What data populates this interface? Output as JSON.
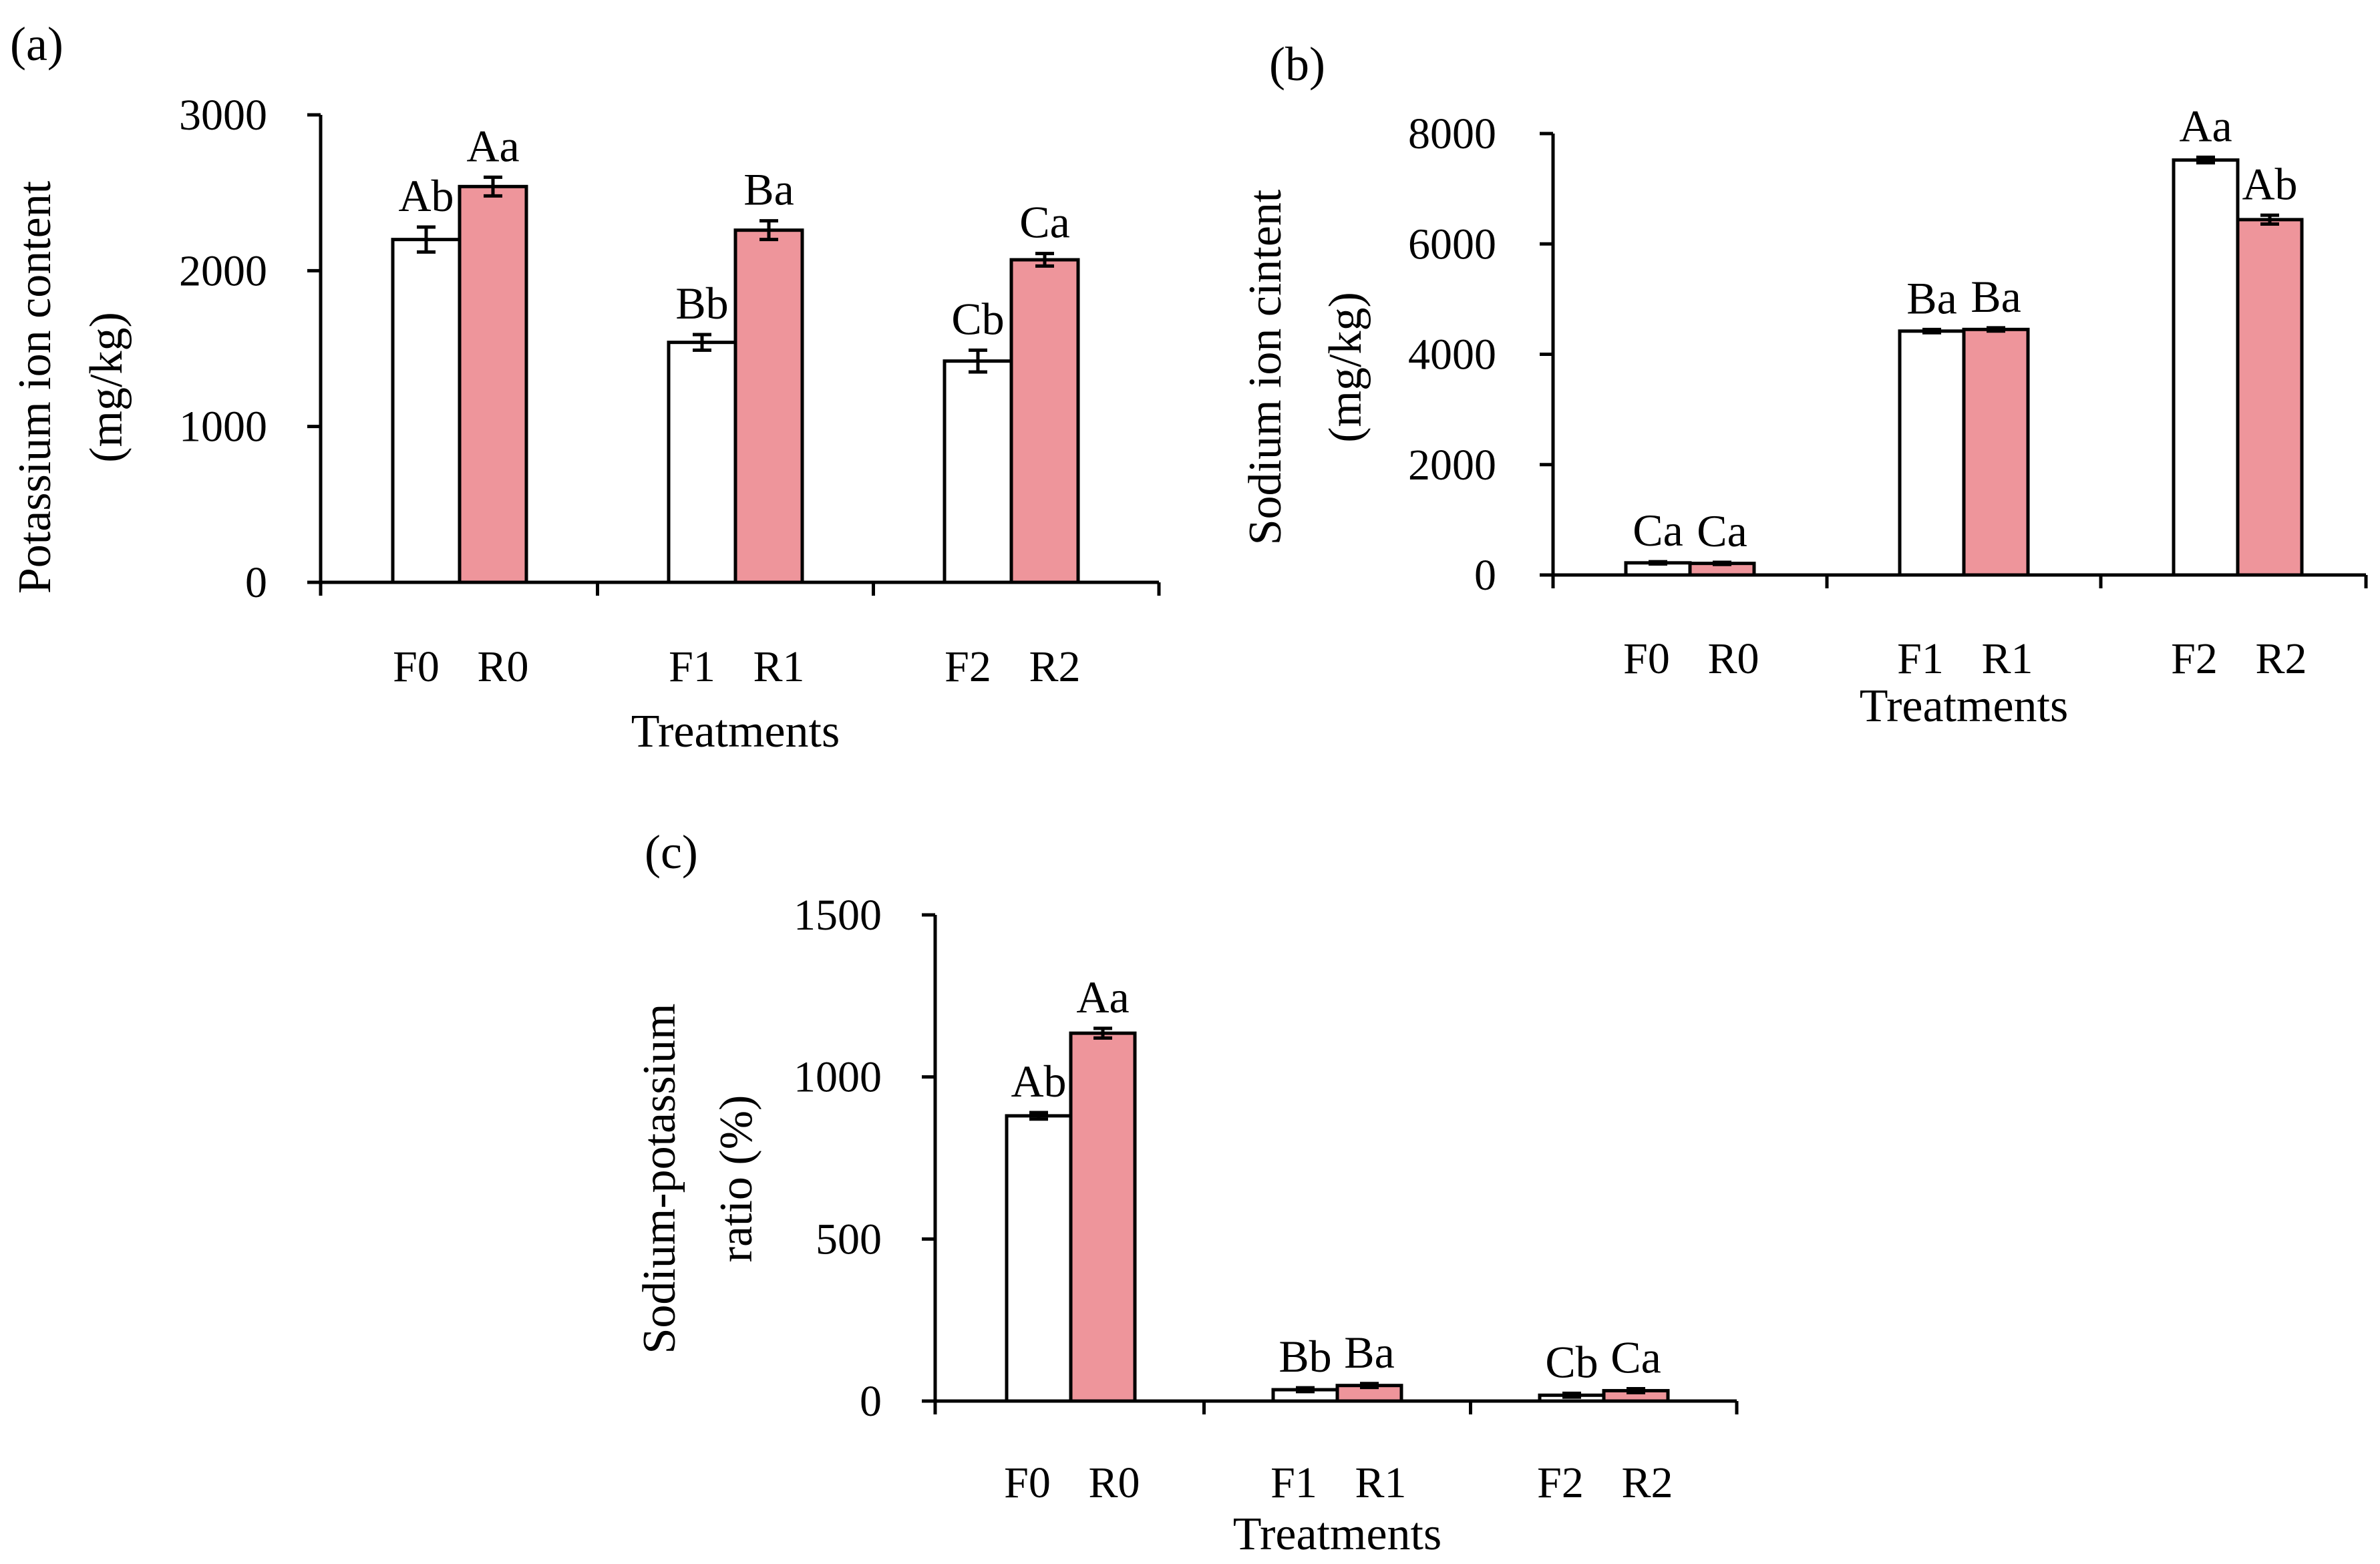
{
  "colors": {
    "F": "#ffffff",
    "R": "#ee959b"
  },
  "chart_data": [
    {
      "type": "bar",
      "panel_label": "(a)",
      "categories": [
        "F0",
        "R0",
        "F1",
        "R1",
        "F2",
        "R2"
      ],
      "groups": [
        [
          "F0",
          "R0"
        ],
        [
          "F1",
          "R1"
        ],
        [
          "F2",
          "R2"
        ]
      ],
      "values": [
        2200,
        2540,
        1540,
        2260,
        1420,
        2070
      ],
      "errors": [
        80,
        60,
        50,
        60,
        70,
        40
      ],
      "letters": [
        "Ab",
        "Aa",
        "Bb",
        "Ba",
        "Cb",
        "Ca"
      ],
      "xlabel": "Treatments",
      "ylabel_lines": [
        "Potassium ion content",
        "(mg/kg)"
      ],
      "ylim": [
        0,
        3000
      ],
      "yticks": [
        "0",
        "1000",
        "2000",
        "3000"
      ],
      "grid": false
    },
    {
      "type": "bar",
      "panel_label": "(b)",
      "categories": [
        "F0",
        "R0",
        "F1",
        "R1",
        "F2",
        "R2"
      ],
      "groups": [
        [
          "F0",
          "R0"
        ],
        [
          "F1",
          "R1"
        ],
        [
          "F2",
          "R2"
        ]
      ],
      "values": [
        220,
        210,
        4420,
        4450,
        7520,
        6440
      ],
      "errors": [
        20,
        20,
        30,
        30,
        50,
        80
      ],
      "letters": [
        "Ca",
        "Ca",
        "Ba",
        "Ba",
        "Aa",
        "Ab"
      ],
      "xlabel": "Treatments",
      "ylabel_lines": [
        "Sodium ion cintent",
        "(mg/kg)"
      ],
      "ylim": [
        0,
        8000
      ],
      "yticks": [
        "0",
        "2000",
        "4000",
        "6000",
        "8000"
      ],
      "grid": false
    },
    {
      "type": "bar",
      "panel_label": "(c)",
      "categories": [
        "F0",
        "R0",
        "F1",
        "R1",
        "F2",
        "R2"
      ],
      "groups": [
        [
          "F0",
          "R0"
        ],
        [
          "F1",
          "R1"
        ],
        [
          "F2",
          "R2"
        ]
      ],
      "values": [
        880,
        1135,
        35,
        48,
        18,
        32
      ],
      "errors": [
        10,
        15,
        6,
        6,
        6,
        6
      ],
      "letters": [
        "Ab",
        "Aa",
        "Bb",
        "Ba",
        "Cb",
        "Ca"
      ],
      "xlabel": "Treatments",
      "ylabel_lines": [
        "Sodium-potassium",
        "ratio (%)"
      ],
      "ylim": [
        0,
        1500
      ],
      "yticks": [
        "0",
        "500",
        "1000",
        "1500"
      ],
      "grid": false
    }
  ]
}
